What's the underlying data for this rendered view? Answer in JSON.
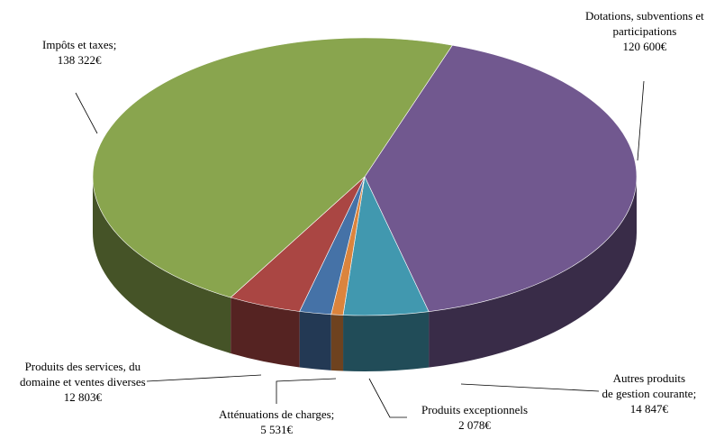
{
  "chart_data": {
    "type": "pie",
    "style": "3d",
    "currency": "€",
    "slices": [
      {
        "name": "Dotations, subventions et participations",
        "value": 120600,
        "label_lines": [
          "Dotations, subventions et",
          "participations"
        ],
        "value_label": "120 600€",
        "color": "#71588f"
      },
      {
        "name": "Autres produits de gestion courante",
        "value": 14847,
        "label_lines": [
          "Autres produits",
          "de gestion courante;"
        ],
        "value_label": "14 847€",
        "color": "#4198af"
      },
      {
        "name": "Produits exceptionnels",
        "value": 2078,
        "label_lines": [
          "Produits exceptionnels"
        ],
        "value_label": "2 078€",
        "color": "#db843d"
      },
      {
        "name": "Atténuations de charges",
        "value": 5531,
        "label_lines": [
          "Atténuations de charges;"
        ],
        "value_label": "5 531€",
        "color": "#4572a7"
      },
      {
        "name": "Produits des services, du domaine et ventes diverses",
        "value": 12803,
        "label_lines": [
          "Produits des services, du",
          "domaine et ventes diverses"
        ],
        "value_label": "12 803€",
        "color": "#aa4643"
      },
      {
        "name": "Impôts et taxes",
        "value": 138322,
        "label_lines": [
          "Impôts et taxes;"
        ],
        "value_label": "138 322€",
        "color": "#89a54e"
      }
    ]
  }
}
